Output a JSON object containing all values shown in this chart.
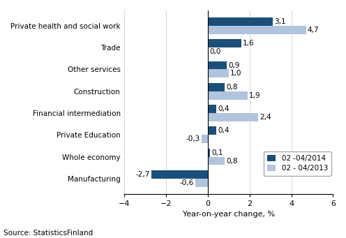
{
  "categories": [
    "Manufacturing",
    "Whole economy",
    "Private Education",
    "Financial intermediation",
    "Construction",
    "Other services",
    "Trade",
    "Private health and social work"
  ],
  "series_2014": [
    -2.7,
    0.1,
    0.4,
    0.4,
    0.8,
    0.9,
    1.6,
    3.1
  ],
  "series_2013": [
    -0.6,
    0.8,
    -0.3,
    2.4,
    1.9,
    1.0,
    0.0,
    4.7
  ],
  "color_2014": "#1a4f7a",
  "color_2013": "#b0c4de",
  "xlabel": "Year-on-year change, %",
  "legend_2014": "02 -04/2014",
  "legend_2013": "02 - 04/2013",
  "xlim": [
    -4,
    6
  ],
  "xticks": [
    -4,
    -2,
    0,
    2,
    4,
    6
  ],
  "source": "Source: StatisticsFinland",
  "bar_height": 0.38
}
